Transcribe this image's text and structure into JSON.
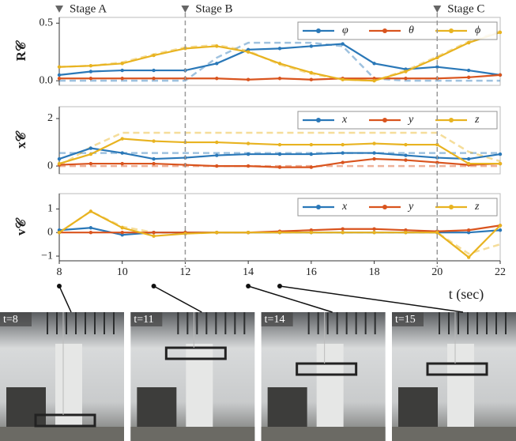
{
  "chart_data": [
    {
      "type": "line",
      "ylabel": "R𝒞",
      "legend": "upper right",
      "x": [
        8,
        9,
        10,
        11,
        12,
        13,
        14,
        15,
        16,
        17,
        18,
        19,
        20,
        21,
        22
      ],
      "xlim": [
        8,
        22
      ],
      "ylim": [
        -0.04,
        0.55
      ],
      "yticks": [
        {
          "value": 0,
          "label": "0.0"
        },
        0.5
      ],
      "series": [
        {
          "name": "φ",
          "color": "#2a78b8",
          "values": [
            0.05,
            0.08,
            0.09,
            0.09,
            0.09,
            0.15,
            0.27,
            0.28,
            0.3,
            0.32,
            0.15,
            0.1,
            0.12,
            0.09,
            0.05
          ]
        },
        {
          "name": "θ",
          "color": "#d9541e",
          "values": [
            0.02,
            0.02,
            0.02,
            0.02,
            0.02,
            0.02,
            0.01,
            0.02,
            0.01,
            0.02,
            0.02,
            0.02,
            0.02,
            0.03,
            0.05
          ]
        },
        {
          "name": "ϕ",
          "color": "#e8b320",
          "values": [
            0.12,
            0.13,
            0.15,
            0.22,
            0.28,
            0.3,
            0.25,
            0.15,
            0.07,
            0.01,
            0.0,
            0.08,
            0.2,
            0.33,
            0.42
          ]
        }
      ],
      "references": [
        {
          "color": "#2a78b8",
          "values": [
            0,
            0,
            0,
            0,
            0,
            0.2,
            0.33,
            0.33,
            0.33,
            0.3,
            0.02,
            0,
            0,
            0,
            0
          ]
        },
        {
          "color": "#e8b320",
          "values": [
            0.12,
            0.13,
            0.16,
            0.23,
            0.29,
            0.31,
            0.26,
            0.14,
            0.06,
            0.01,
            0.0,
            0.09,
            0.21,
            0.34,
            0.43
          ]
        }
      ]
    },
    {
      "type": "line",
      "ylabel": "x𝒞",
      "legend": "upper right",
      "x": [
        8,
        9,
        10,
        11,
        12,
        13,
        14,
        15,
        16,
        17,
        18,
        19,
        20,
        21,
        22
      ],
      "xlim": [
        8,
        22
      ],
      "ylim": [
        -0.33,
        2.5
      ],
      "yticks": [
        0,
        2
      ],
      "series": [
        {
          "name": "x",
          "color": "#2a78b8",
          "values": [
            0.3,
            0.75,
            0.55,
            0.3,
            0.35,
            0.45,
            0.5,
            0.5,
            0.5,
            0.55,
            0.55,
            0.45,
            0.35,
            0.3,
            0.5
          ]
        },
        {
          "name": "y",
          "color": "#d9541e",
          "values": [
            0.05,
            0.1,
            0.1,
            0.1,
            0.05,
            0.0,
            0.0,
            -0.05,
            -0.05,
            0.15,
            0.3,
            0.25,
            0.15,
            0.05,
            0.1
          ]
        },
        {
          "name": "z",
          "color": "#e8b320",
          "values": [
            0.1,
            0.5,
            1.15,
            1.05,
            1.0,
            1.0,
            0.95,
            0.9,
            0.9,
            0.9,
            0.95,
            0.9,
            0.9,
            0.1,
            0.1
          ]
        }
      ],
      "references": [
        {
          "color": "#2a78b8",
          "values": [
            0.55,
            0.55,
            0.55,
            0.55,
            0.55,
            0.55,
            0.55,
            0.55,
            0.55,
            0.55,
            0.55,
            0.55,
            0.55,
            0.55,
            0.55
          ]
        },
        {
          "color": "#d9541e",
          "values": [
            0,
            0,
            0,
            0,
            0,
            0,
            0,
            0,
            0,
            0,
            0,
            0,
            0,
            0,
            0
          ]
        },
        {
          "color": "#e8b320",
          "values": [
            0,
            0.8,
            1.4,
            1.4,
            1.4,
            1.4,
            1.4,
            1.4,
            1.4,
            1.4,
            1.4,
            1.4,
            1.4,
            0.6,
            0.2
          ]
        }
      ]
    },
    {
      "type": "line",
      "ylabel": "v𝒞",
      "legend": "upper right",
      "x": [
        8,
        9,
        10,
        11,
        12,
        13,
        14,
        15,
        16,
        17,
        18,
        19,
        20,
        21,
        22
      ],
      "xlim": [
        8,
        22
      ],
      "ylim": [
        -1.2,
        1.65
      ],
      "yticks": [
        {
          "value": -1,
          "label": "−1"
        },
        0,
        1
      ],
      "xticks": [
        8,
        10,
        12,
        14,
        16,
        18,
        20,
        22
      ],
      "xlabel": "t (sec)",
      "series": [
        {
          "name": "x",
          "color": "#2a78b8",
          "values": [
            0.1,
            0.2,
            -0.1,
            0.0,
            0.0,
            0.0,
            0.0,
            0.0,
            0.0,
            0.0,
            0.0,
            0.0,
            0.0,
            0.0,
            0.1
          ]
        },
        {
          "name": "y",
          "color": "#d9541e",
          "values": [
            0.0,
            0.0,
            0.0,
            0.0,
            0.0,
            0.0,
            0.0,
            0.05,
            0.1,
            0.15,
            0.15,
            0.1,
            0.05,
            0.1,
            0.3
          ]
        },
        {
          "name": "z",
          "color": "#e8b320",
          "values": [
            0.0,
            0.9,
            0.2,
            -0.15,
            -0.05,
            0.0,
            0.0,
            0.0,
            0.0,
            0.0,
            0.0,
            0.0,
            0.0,
            -1.05,
            0.3
          ]
        }
      ],
      "references": [
        {
          "color": "#e8b320",
          "values": [
            0,
            0.9,
            0.25,
            0,
            0,
            0,
            0,
            0,
            0,
            0,
            0,
            0,
            0,
            -0.9,
            -0.5
          ]
        }
      ]
    }
  ],
  "stages": [
    {
      "label": "Stage A",
      "x": 8
    },
    {
      "label": "Stage B",
      "x": 12
    },
    {
      "label": "Stage C",
      "x": 20
    }
  ],
  "photos": [
    {
      "label": "t=8",
      "t": 8
    },
    {
      "label": "t=11",
      "t": 11
    },
    {
      "label": "t=14",
      "t": 14
    },
    {
      "label": "t=15",
      "t": 15
    }
  ]
}
